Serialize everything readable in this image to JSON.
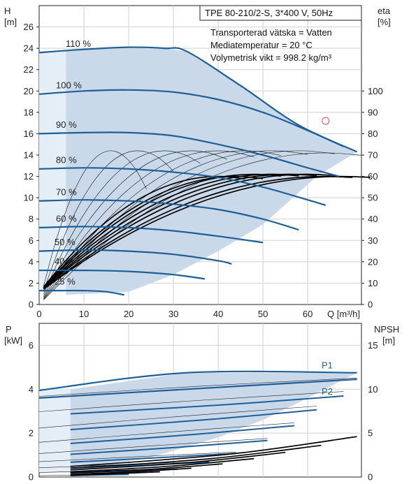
{
  "chart_data": [
    {
      "type": "line",
      "title": "TPE 80-210/2-S, 3*400 V, 50Hz",
      "info": [
        "Transporterad vätska = Vatten",
        "Mediatemperatur = 20 °C",
        "Volymetrisk vikt = 998.2 kg/m³"
      ],
      "y_left_label": [
        "H",
        "[m]"
      ],
      "y_right_label": [
        "eta",
        "[%]"
      ],
      "xlabel": "Q [m³/h]",
      "x_ticks": [
        0,
        10,
        20,
        30,
        40,
        50,
        60
      ],
      "y_left_ticks": [
        0,
        2,
        4,
        6,
        8,
        10,
        12,
        14,
        16,
        18,
        20,
        22,
        24,
        26
      ],
      "y_right_ticks": [
        0,
        10,
        20,
        30,
        40,
        50,
        60,
        70,
        80,
        90,
        100
      ],
      "xlim": [
        0,
        72
      ],
      "ylim": [
        0,
        28
      ],
      "colors": {
        "curve": "#1f5f96",
        "area": "#c9d9ea",
        "area_light": "#e4eef7",
        "marker": "#d94a4a"
      },
      "duty_point": {
        "x": 64,
        "y": 17.2
      },
      "series": [
        {
          "name": "110 %",
          "x": [
            0,
            10,
            20,
            28,
            33,
            45,
            58,
            71
          ],
          "y": [
            23.6,
            23.9,
            24.1,
            24.0,
            23.7,
            20.5,
            16.8,
            14.3
          ]
        },
        {
          "name": "100 %",
          "x": [
            0,
            10,
            20,
            30,
            40,
            50,
            60,
            68
          ],
          "y": [
            19.7,
            20.0,
            20.1,
            19.9,
            19.2,
            18.0,
            16.3,
            14.8
          ]
        },
        {
          "name": "90 %",
          "x": [
            0,
            10,
            20,
            30,
            40,
            50,
            60,
            67
          ],
          "y": [
            16.0,
            16.1,
            16.1,
            15.8,
            15.0,
            14.0,
            12.8,
            12.0
          ]
        },
        {
          "name": "80 %",
          "x": [
            0,
            10,
            20,
            30,
            40,
            50,
            60,
            64
          ],
          "y": [
            12.7,
            12.8,
            12.7,
            12.4,
            11.9,
            11.0,
            9.8,
            9.3
          ]
        },
        {
          "name": "70 %",
          "x": [
            0,
            10,
            20,
            30,
            40,
            50,
            58
          ],
          "y": [
            9.7,
            9.8,
            9.7,
            9.4,
            8.9,
            8.0,
            7.0
          ]
        },
        {
          "name": "60 %",
          "x": [
            0,
            10,
            20,
            30,
            40,
            50
          ],
          "y": [
            7.2,
            7.3,
            7.2,
            6.9,
            6.4,
            5.8
          ]
        },
        {
          "name": "50 %",
          "x": [
            0,
            10,
            20,
            30,
            40,
            43
          ],
          "y": [
            5.0,
            5.1,
            5.0,
            4.7,
            4.1,
            3.8
          ]
        },
        {
          "name": "40 %",
          "x": [
            0,
            10,
            20,
            30,
            37
          ],
          "y": [
            3.2,
            3.2,
            3.1,
            2.8,
            2.4
          ]
        },
        {
          "name": "25 %",
          "x": [
            0,
            5,
            10,
            15,
            19
          ],
          "y": [
            1.3,
            1.3,
            1.3,
            1.2,
            0.9
          ]
        }
      ]
    },
    {
      "type": "line",
      "y_left_label": [
        "P",
        "[kW]"
      ],
      "y_right_label": [
        "NPSH",
        "[m]"
      ],
      "x_ticks": [
        0,
        10,
        20,
        30,
        40,
        50,
        60
      ],
      "y_left_ticks": [
        0,
        2,
        4,
        6
      ],
      "y_right_ticks": [
        0,
        5,
        10,
        15
      ],
      "xlim": [
        0,
        72
      ],
      "ylim": [
        0,
        7
      ],
      "series": [
        {
          "name": "P1",
          "x": [
            0,
            33,
            71
          ],
          "y": [
            3.95,
            4.75,
            4.75
          ]
        },
        {
          "name": "P2",
          "x": [
            0,
            33,
            71
          ],
          "y": [
            3.6,
            4.0,
            4.45
          ]
        }
      ]
    }
  ]
}
